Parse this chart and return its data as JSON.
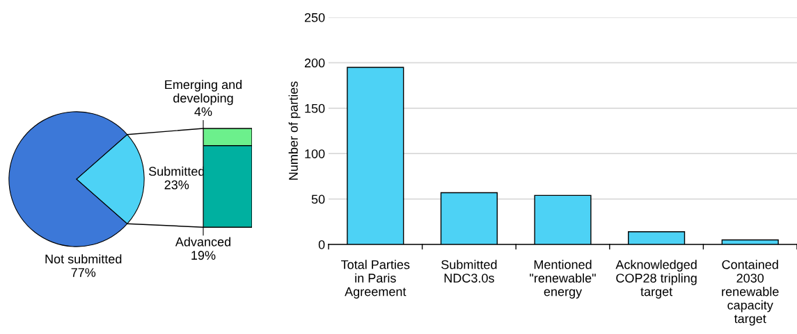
{
  "chart_data": [
    {
      "type": "pie",
      "categories": [
        "Not submitted",
        "Submitted"
      ],
      "values": [
        77,
        23
      ],
      "colors": [
        "#3c78d8",
        "#4dd2f5"
      ],
      "value_labels": [
        "77%",
        "23%"
      ]
    },
    {
      "type": "bar",
      "stacked": true,
      "categories": [
        null
      ],
      "series": [
        {
          "name": "Advanced",
          "color": "#00b0a0",
          "values": [
            19
          ],
          "value_labels": [
            "19%"
          ]
        },
        {
          "name": "Emerging and developing",
          "color": "#6cf08c",
          "values": [
            4
          ],
          "value_labels": [
            "4%"
          ]
        }
      ]
    },
    {
      "type": "bar",
      "categories": [
        "Total Parties\nin Paris\nAgreement",
        "Submitted\nNDC3.0s",
        "Mentioned\n\"renewable\"\nenergy",
        "Acknowledged\nCOP28 tripling\ntarget",
        "Contained\n2030\nrenewable\ncapacity\ntarget"
      ],
      "values": [
        195,
        57,
        54,
        14,
        5
      ],
      "color": "#4dd2f5",
      "ylabel": "Number of parties",
      "ylim": [
        0,
        250
      ],
      "yticks": [
        0,
        50,
        100,
        150,
        200,
        250
      ],
      "grid": "y"
    }
  ]
}
